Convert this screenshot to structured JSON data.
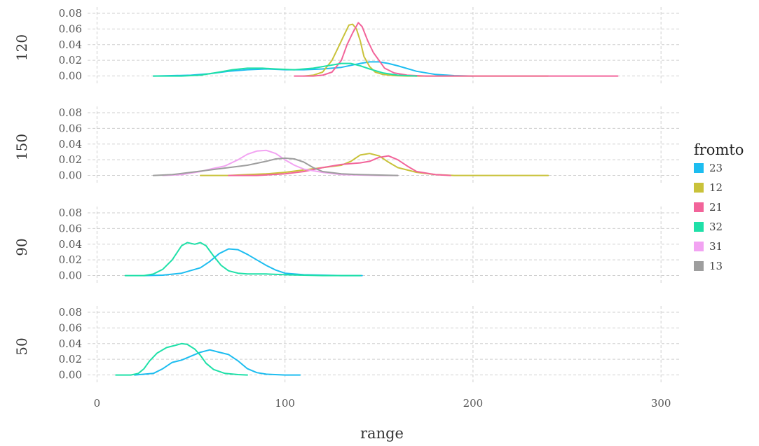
{
  "chart_data": {
    "type": "line",
    "title": "",
    "xlabel": "range",
    "ylabel": "",
    "xlim": [
      -5,
      310
    ],
    "ylim": [
      -0.012,
      0.088
    ],
    "x_ticks": [
      0,
      100,
      200,
      300
    ],
    "x_tick_labels": [
      "0",
      "100",
      "200",
      "300"
    ],
    "y_ticks": [
      0,
      0.02,
      0.04,
      0.06,
      0.08
    ],
    "y_tick_labels": [
      "0.00",
      "0.02",
      "0.04",
      "0.06",
      "0.08"
    ],
    "grid": true,
    "legend": {
      "title": "fromto",
      "placement": "right",
      "entries": [
        {
          "label": "23",
          "color": "#1DBDF0"
        },
        {
          "label": "12",
          "color": "#C9C23A"
        },
        {
          "label": "21",
          "color": "#F2649A"
        },
        {
          "label": "32",
          "color": "#1FE0A8"
        },
        {
          "label": "31",
          "color": "#F2A3F2"
        },
        {
          "label": "13",
          "color": "#9E9E9E"
        }
      ]
    },
    "facets": [
      {
        "label": "120",
        "series": [
          {
            "name": "23",
            "x": [
              30,
              50,
              60,
              70,
              80,
              90,
              100,
              110,
              120,
              130,
              140,
              145,
              150,
              155,
              160,
              170,
              180,
              190,
              200
            ],
            "y": [
              0,
              0.001,
              0.003,
              0.006,
              0.008,
              0.009,
              0.008,
              0.008,
              0.009,
              0.011,
              0.016,
              0.018,
              0.018,
              0.016,
              0.013,
              0.006,
              0.002,
              0.0005,
              0
            ]
          },
          {
            "name": "12",
            "x": [
              110,
              115,
              120,
              125,
              128,
              131,
              134,
              136,
              138,
              140,
              142,
              145,
              148,
              152,
              158,
              165,
              170,
              200,
              240
            ],
            "y": [
              0,
              0.001,
              0.005,
              0.02,
              0.035,
              0.05,
              0.065,
              0.066,
              0.06,
              0.045,
              0.025,
              0.012,
              0.005,
              0.002,
              0.0005,
              0,
              0,
              0,
              0
            ]
          },
          {
            "name": "21",
            "x": [
              105,
              115,
              120,
              125,
              130,
              133,
              136,
              139,
              141,
              144,
              147,
              150,
              153,
              158,
              165,
              175,
              190,
              220,
              260,
              277
            ],
            "y": [
              0,
              0,
              0.001,
              0.005,
              0.02,
              0.04,
              0.055,
              0.068,
              0.063,
              0.045,
              0.03,
              0.02,
              0.01,
              0.004,
              0.001,
              0,
              0,
              0,
              0,
              0
            ]
          },
          {
            "name": "32",
            "x": [
              30,
              45,
              55,
              65,
              72,
              80,
              88,
              95,
              105,
              115,
              125,
              130,
              135,
              140,
              145,
              152,
              160,
              170
            ],
            "y": [
              0,
              0,
              0.001,
              0.005,
              0.008,
              0.01,
              0.01,
              0.009,
              0.008,
              0.01,
              0.014,
              0.016,
              0.016,
              0.013,
              0.009,
              0.004,
              0.001,
              0
            ]
          }
        ]
      },
      {
        "label": "150",
        "series": [
          {
            "name": "12",
            "x": [
              55,
              70,
              80,
              90,
              100,
              110,
              120,
              130,
              135,
              140,
              145,
              150,
              155,
              160,
              170,
              180,
              190,
              200,
              220,
              240
            ],
            "y": [
              0,
              0,
              0.001,
              0.002,
              0.004,
              0.007,
              0.01,
              0.013,
              0.018,
              0.026,
              0.028,
              0.025,
              0.017,
              0.01,
              0.004,
              0.001,
              0,
              0,
              0,
              0
            ]
          },
          {
            "name": "21",
            "x": [
              70,
              85,
              100,
              110,
              120,
              130,
              140,
              145,
              150,
              155,
              160,
              165,
              170,
              180,
              188
            ],
            "y": [
              0,
              0,
              0.002,
              0.005,
              0.01,
              0.014,
              0.016,
              0.018,
              0.023,
              0.025,
              0.02,
              0.012,
              0.005,
              0.001,
              0
            ]
          },
          {
            "name": "31",
            "x": [
              35,
              45,
              55,
              62,
              68,
              75,
              80,
              85,
              90,
              95,
              100,
              105,
              110,
              120,
              130,
              140,
              150,
              160
            ],
            "y": [
              0,
              0.001,
              0.005,
              0.009,
              0.012,
              0.02,
              0.027,
              0.031,
              0.032,
              0.028,
              0.02,
              0.013,
              0.008,
              0.004,
              0.001,
              0.0005,
              0,
              0
            ]
          },
          {
            "name": "13",
            "x": [
              30,
              40,
              50,
              60,
              70,
              80,
              90,
              95,
              100,
              105,
              110,
              115,
              120,
              130,
              140,
              150,
              160
            ],
            "y": [
              0,
              0.001,
              0.004,
              0.007,
              0.01,
              0.013,
              0.018,
              0.021,
              0.022,
              0.021,
              0.017,
              0.01,
              0.005,
              0.002,
              0.001,
              0.0005,
              0
            ]
          }
        ]
      },
      {
        "label": "90",
        "series": [
          {
            "name": "23",
            "x": [
              25,
              35,
              45,
              55,
              60,
              65,
              70,
              75,
              80,
              85,
              90,
              95,
              100,
              110,
              120,
              130,
              141
            ],
            "y": [
              0,
              0.0005,
              0.003,
              0.01,
              0.018,
              0.028,
              0.034,
              0.033,
              0.027,
              0.02,
              0.013,
              0.007,
              0.003,
              0.001,
              0.0005,
              0,
              0
            ]
          },
          {
            "name": "32",
            "x": [
              15,
              25,
              30,
              35,
              40,
              45,
              48,
              52,
              55,
              58,
              62,
              66,
              70,
              75,
              80,
              90,
              100,
              120,
              140
            ],
            "y": [
              0,
              0,
              0.002,
              0.008,
              0.02,
              0.038,
              0.042,
              0.04,
              0.042,
              0.038,
              0.025,
              0.013,
              0.006,
              0.003,
              0.002,
              0.002,
              0.001,
              0,
              0
            ]
          }
        ]
      },
      {
        "label": "50",
        "series": [
          {
            "name": "23",
            "x": [
              20,
              30,
              35,
              40,
              45,
              50,
              55,
              60,
              65,
              70,
              75,
              80,
              85,
              90,
              100,
              108
            ],
            "y": [
              0,
              0.002,
              0.008,
              0.016,
              0.019,
              0.024,
              0.029,
              0.032,
              0.029,
              0.026,
              0.018,
              0.008,
              0.003,
              0.001,
              0,
              0
            ]
          },
          {
            "name": "32",
            "x": [
              10,
              18,
              22,
              25,
              28,
              32,
              37,
              42,
              45,
              48,
              52,
              55,
              58,
              62,
              68,
              75,
              80
            ],
            "y": [
              0,
              0,
              0.002,
              0.008,
              0.018,
              0.028,
              0.035,
              0.038,
              0.04,
              0.039,
              0.033,
              0.025,
              0.015,
              0.007,
              0.002,
              0.0005,
              0
            ]
          }
        ]
      }
    ]
  }
}
